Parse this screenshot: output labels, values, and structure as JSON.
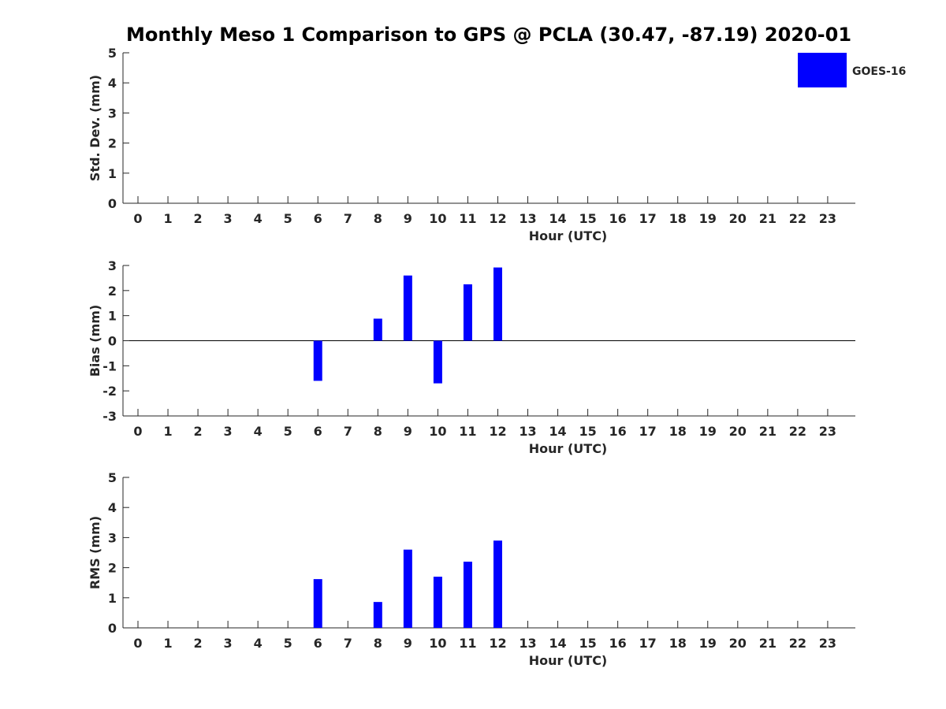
{
  "chart_data": {
    "type": "bar",
    "title": "Monthly Meso 1 Comparison to GPS @ PCLA (30.47, -87.19) 2020-01",
    "legend": {
      "label": "GOES-16",
      "placement": "top-right"
    },
    "colors": {
      "bar": "#0000ff"
    },
    "x_categories": [
      "0",
      "1",
      "2",
      "3",
      "4",
      "5",
      "6",
      "7",
      "8",
      "9",
      "10",
      "11",
      "12",
      "13",
      "14",
      "15",
      "16",
      "17",
      "18",
      "19",
      "20",
      "21",
      "22",
      "23"
    ],
    "panels": [
      {
        "id": "std",
        "ylabel": "Std. Dev. (mm)",
        "xlabel": "Hour (UTC)",
        "ylim": [
          0,
          5
        ],
        "yticks": [
          0,
          1,
          2,
          3,
          4,
          5
        ],
        "zero_line": false,
        "values": [
          null,
          null,
          null,
          null,
          null,
          null,
          null,
          null,
          null,
          null,
          null,
          null,
          null,
          null,
          null,
          null,
          null,
          null,
          null,
          null,
          null,
          null,
          null,
          null
        ]
      },
      {
        "id": "bias",
        "ylabel": "Bias (mm)",
        "xlabel": "Hour (UTC)",
        "ylim": [
          -3,
          3
        ],
        "yticks": [
          -3,
          -2,
          -1,
          0,
          1,
          2,
          3
        ],
        "zero_line": true,
        "values": [
          null,
          null,
          null,
          null,
          null,
          null,
          -1.6,
          null,
          0.88,
          2.6,
          -1.7,
          2.25,
          2.92,
          null,
          null,
          null,
          null,
          null,
          null,
          null,
          null,
          null,
          null,
          null
        ]
      },
      {
        "id": "rms",
        "ylabel": "RMS (mm)",
        "xlabel": "Hour (UTC)",
        "ylim": [
          0,
          5
        ],
        "yticks": [
          0,
          1,
          2,
          3,
          4,
          5
        ],
        "zero_line": false,
        "values": [
          null,
          null,
          null,
          null,
          null,
          null,
          1.62,
          null,
          0.86,
          2.6,
          1.7,
          2.2,
          2.9,
          null,
          null,
          null,
          null,
          null,
          null,
          null,
          null,
          null,
          null,
          null
        ]
      }
    ]
  }
}
